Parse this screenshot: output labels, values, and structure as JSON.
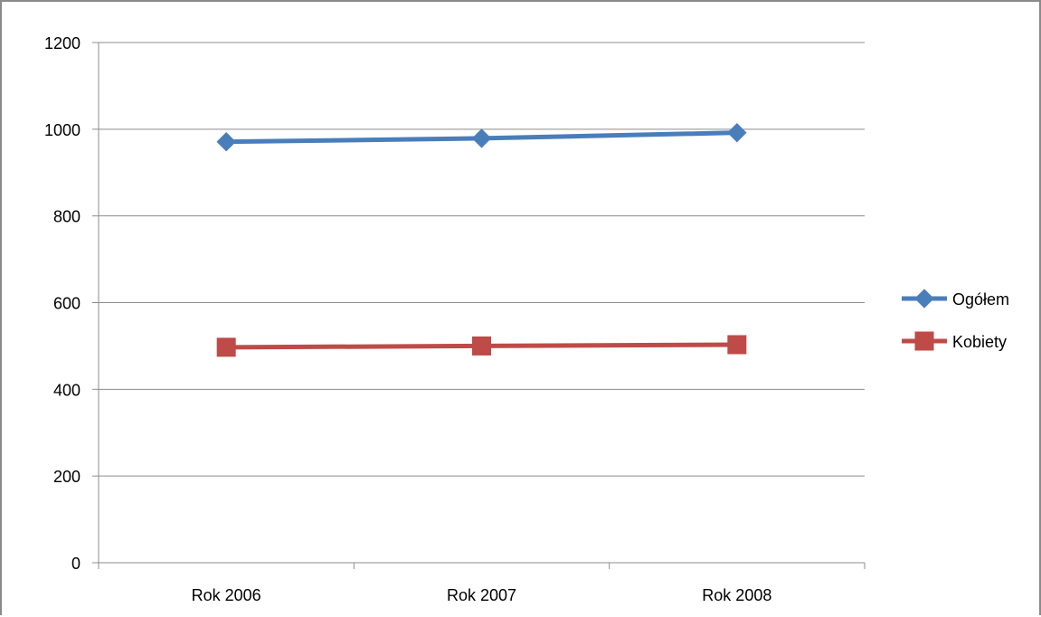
{
  "chart_data": {
    "type": "line",
    "categories": [
      "Rok 2006",
      "Rok 2007",
      "Rok 2008"
    ],
    "series": [
      {
        "name": "Ogółem",
        "values": [
          971,
          979,
          992
        ],
        "color": "#4a7ebb",
        "marker": "diamond"
      },
      {
        "name": "Kobiety",
        "values": [
          497,
          500,
          503
        ],
        "color": "#be4b48",
        "marker": "square"
      }
    ],
    "ylim": [
      0,
      1200
    ],
    "yticks": [
      0,
      200,
      400,
      600,
      800,
      1000,
      1200
    ],
    "grid": true,
    "legend_position": "right",
    "title": "",
    "xlabel": "",
    "ylabel": ""
  }
}
